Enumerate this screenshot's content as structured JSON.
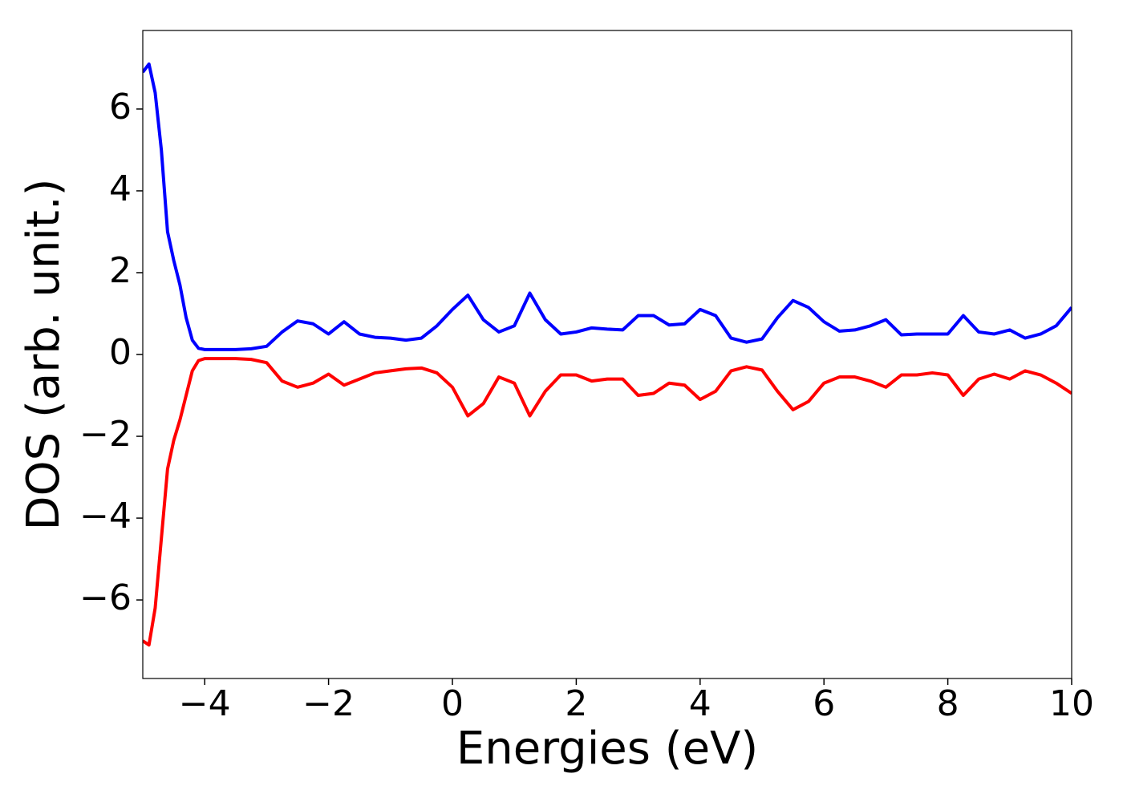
{
  "chart_data": {
    "type": "line",
    "xlabel": "Energies (eV)",
    "ylabel": "DOS (arb. unit.)",
    "x": [
      -5,
      -4.9,
      -4.8,
      -4.7,
      -4.6,
      -4.5,
      -4.4,
      -4.3,
      -4.2,
      -4.1,
      -4,
      -3.75,
      -3.5,
      -3.25,
      -3,
      -2.75,
      -2.5,
      -2.25,
      -2,
      -1.75,
      -1.5,
      -1.25,
      -1,
      -0.75,
      -0.5,
      -0.25,
      0,
      0.25,
      0.5,
      0.75,
      1,
      1.25,
      1.5,
      1.75,
      2,
      2.25,
      2.5,
      2.75,
      3,
      3.25,
      3.5,
      3.75,
      4,
      4.25,
      4.5,
      4.75,
      5,
      5.25,
      5.5,
      5.75,
      6,
      6.25,
      6.5,
      6.75,
      7,
      7.25,
      7.5,
      7.75,
      8,
      8.25,
      8.5,
      8.75,
      9,
      9.25,
      9.5,
      9.75,
      10
    ],
    "series": [
      {
        "color": "#0000ff",
        "values": [
          6.9,
          7.1,
          6.4,
          5.0,
          3.0,
          2.3,
          1.7,
          0.9,
          0.35,
          0.15,
          0.12,
          0.12,
          0.12,
          0.14,
          0.2,
          0.55,
          0.82,
          0.75,
          0.5,
          0.8,
          0.5,
          0.42,
          0.4,
          0.35,
          0.4,
          0.7,
          1.1,
          1.45,
          0.85,
          0.55,
          0.7,
          1.5,
          0.85,
          0.5,
          0.55,
          0.65,
          0.62,
          0.6,
          0.95,
          0.95,
          0.72,
          0.75,
          1.1,
          0.95,
          0.4,
          0.3,
          0.38,
          0.9,
          1.32,
          1.15,
          0.8,
          0.57,
          0.6,
          0.7,
          0.85,
          0.48,
          0.5,
          0.5,
          0.5,
          0.95,
          0.55,
          0.5,
          0.6,
          0.4,
          0.5,
          0.7,
          1.15
        ]
      },
      {
        "color": "#ff0000",
        "values": [
          -7.0,
          -7.1,
          -6.2,
          -4.5,
          -2.8,
          -2.1,
          -1.6,
          -1.0,
          -0.4,
          -0.15,
          -0.1,
          -0.1,
          -0.1,
          -0.12,
          -0.2,
          -0.65,
          -0.8,
          -0.7,
          -0.48,
          -0.75,
          -0.6,
          -0.45,
          -0.4,
          -0.35,
          -0.33,
          -0.45,
          -0.8,
          -1.5,
          -1.2,
          -0.55,
          -0.7,
          -1.5,
          -0.9,
          -0.5,
          -0.5,
          -0.65,
          -0.6,
          -0.6,
          -1.0,
          -0.95,
          -0.7,
          -0.75,
          -1.1,
          -0.9,
          -0.4,
          -0.3,
          -0.38,
          -0.9,
          -1.35,
          -1.15,
          -0.7,
          -0.55,
          -0.55,
          -0.65,
          -0.8,
          -0.5,
          -0.5,
          -0.45,
          -0.5,
          -1.0,
          -0.6,
          -0.48,
          -0.6,
          -0.4,
          -0.5,
          -0.7,
          -0.95
        ]
      }
    ],
    "xlim": [
      -5,
      10
    ],
    "xticks": [
      {
        "value": -4,
        "label": "−4"
      },
      {
        "value": -2,
        "label": "−2"
      },
      0,
      2,
      4,
      6,
      8,
      10
    ],
    "ylim": [
      -7.92,
      7.92
    ],
    "yticks": [
      {
        "value": -6,
        "label": "−6"
      },
      {
        "value": -4,
        "label": "−4"
      },
      {
        "value": -2,
        "label": "−2"
      },
      0,
      2,
      4,
      6
    ],
    "grid": false
  }
}
